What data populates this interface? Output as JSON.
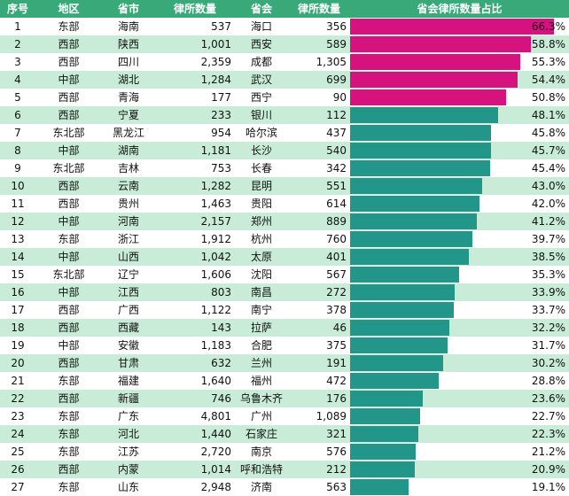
{
  "table": {
    "headers": [
      "序号",
      "地区",
      "省市",
      "律所数量",
      "省会",
      "律所数量",
      "省会律所数量占比"
    ],
    "colors": {
      "header": "#3aa97a",
      "top5": "#d6127e",
      "rest": "#23968a",
      "row_alt": "#c8ecd7"
    }
  },
  "chart_data": {
    "type": "bar",
    "orientation": "horizontal",
    "xlim": [
      0,
      70
    ],
    "highlight_top_n": 5,
    "rows": [
      {
        "no": "1",
        "region": "东部",
        "province": "海南",
        "province_firms": "537",
        "capital": "海口",
        "capital_firms": "356",
        "share": 66.3,
        "share_label": "66.3%"
      },
      {
        "no": "2",
        "region": "西部",
        "province": "陕西",
        "province_firms": "1,001",
        "capital": "西安",
        "capital_firms": "589",
        "share": 58.8,
        "share_label": "58.8%"
      },
      {
        "no": "3",
        "region": "西部",
        "province": "四川",
        "province_firms": "2,359",
        "capital": "成都",
        "capital_firms": "1,305",
        "share": 55.3,
        "share_label": "55.3%"
      },
      {
        "no": "4",
        "region": "中部",
        "province": "湖北",
        "province_firms": "1,284",
        "capital": "武汉",
        "capital_firms": "699",
        "share": 54.4,
        "share_label": "54.4%"
      },
      {
        "no": "5",
        "region": "西部",
        "province": "青海",
        "province_firms": "177",
        "capital": "西宁",
        "capital_firms": "90",
        "share": 50.8,
        "share_label": "50.8%"
      },
      {
        "no": "6",
        "region": "西部",
        "province": "宁夏",
        "province_firms": "233",
        "capital": "银川",
        "capital_firms": "112",
        "share": 48.1,
        "share_label": "48.1%"
      },
      {
        "no": "7",
        "region": "东北部",
        "province": "黑龙江",
        "province_firms": "954",
        "capital": "哈尔滨",
        "capital_firms": "437",
        "share": 45.8,
        "share_label": "45.8%"
      },
      {
        "no": "8",
        "region": "中部",
        "province": "湖南",
        "province_firms": "1,181",
        "capital": "长沙",
        "capital_firms": "540",
        "share": 45.7,
        "share_label": "45.7%"
      },
      {
        "no": "9",
        "region": "东北部",
        "province": "吉林",
        "province_firms": "753",
        "capital": "长春",
        "capital_firms": "342",
        "share": 45.4,
        "share_label": "45.4%"
      },
      {
        "no": "10",
        "region": "西部",
        "province": "云南",
        "province_firms": "1,282",
        "capital": "昆明",
        "capital_firms": "551",
        "share": 43.0,
        "share_label": "43.0%"
      },
      {
        "no": "11",
        "region": "西部",
        "province": "贵州",
        "province_firms": "1,463",
        "capital": "贵阳",
        "capital_firms": "614",
        "share": 42.0,
        "share_label": "42.0%"
      },
      {
        "no": "12",
        "region": "中部",
        "province": "河南",
        "province_firms": "2,157",
        "capital": "郑州",
        "capital_firms": "889",
        "share": 41.2,
        "share_label": "41.2%"
      },
      {
        "no": "13",
        "region": "东部",
        "province": "浙江",
        "province_firms": "1,912",
        "capital": "杭州",
        "capital_firms": "760",
        "share": 39.7,
        "share_label": "39.7%"
      },
      {
        "no": "14",
        "region": "中部",
        "province": "山西",
        "province_firms": "1,042",
        "capital": "太原",
        "capital_firms": "401",
        "share": 38.5,
        "share_label": "38.5%"
      },
      {
        "no": "15",
        "region": "东北部",
        "province": "辽宁",
        "province_firms": "1,606",
        "capital": "沈阳",
        "capital_firms": "567",
        "share": 35.3,
        "share_label": "35.3%"
      },
      {
        "no": "16",
        "region": "中部",
        "province": "江西",
        "province_firms": "803",
        "capital": "南昌",
        "capital_firms": "272",
        "share": 33.9,
        "share_label": "33.9%"
      },
      {
        "no": "17",
        "region": "西部",
        "province": "广西",
        "province_firms": "1,122",
        "capital": "南宁",
        "capital_firms": "378",
        "share": 33.7,
        "share_label": "33.7%"
      },
      {
        "no": "18",
        "region": "西部",
        "province": "西藏",
        "province_firms": "143",
        "capital": "拉萨",
        "capital_firms": "46",
        "share": 32.2,
        "share_label": "32.2%"
      },
      {
        "no": "19",
        "region": "中部",
        "province": "安徽",
        "province_firms": "1,183",
        "capital": "合肥",
        "capital_firms": "375",
        "share": 31.7,
        "share_label": "31.7%"
      },
      {
        "no": "20",
        "region": "西部",
        "province": "甘肃",
        "province_firms": "632",
        "capital": "兰州",
        "capital_firms": "191",
        "share": 30.2,
        "share_label": "30.2%"
      },
      {
        "no": "21",
        "region": "东部",
        "province": "福建",
        "province_firms": "1,640",
        "capital": "福州",
        "capital_firms": "472",
        "share": 28.8,
        "share_label": "28.8%"
      },
      {
        "no": "22",
        "region": "西部",
        "province": "新疆",
        "province_firms": "746",
        "capital": "乌鲁木齐",
        "capital_firms": "176",
        "share": 23.6,
        "share_label": "23.6%"
      },
      {
        "no": "23",
        "region": "东部",
        "province": "广东",
        "province_firms": "4,801",
        "capital": "广州",
        "capital_firms": "1,089",
        "share": 22.7,
        "share_label": "22.7%"
      },
      {
        "no": "24",
        "region": "东部",
        "province": "河北",
        "province_firms": "1,440",
        "capital": "石家庄",
        "capital_firms": "321",
        "share": 22.3,
        "share_label": "22.3%"
      },
      {
        "no": "25",
        "region": "东部",
        "province": "江苏",
        "province_firms": "2,720",
        "capital": "南京",
        "capital_firms": "576",
        "share": 21.2,
        "share_label": "21.2%"
      },
      {
        "no": "26",
        "region": "西部",
        "province": "内蒙",
        "province_firms": "1,014",
        "capital": "呼和浩特",
        "capital_firms": "212",
        "share": 20.9,
        "share_label": "20.9%"
      },
      {
        "no": "27",
        "region": "东部",
        "province": "山东",
        "province_firms": "2,948",
        "capital": "济南",
        "capital_firms": "563",
        "share": 19.1,
        "share_label": "19.1%"
      }
    ]
  }
}
